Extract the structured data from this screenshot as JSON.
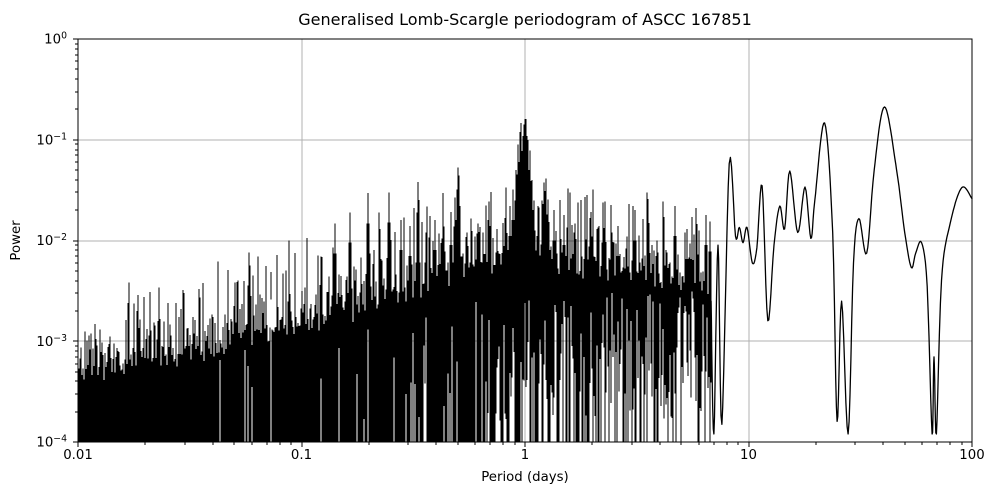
{
  "figure": {
    "background": "#ffffff"
  },
  "chart_data": {
    "type": "line",
    "title": "Generalised Lomb-Scargle periodogram of ASCC 167851",
    "xlabel": "Period (days)",
    "ylabel": "Power",
    "xscale": "log",
    "yscale": "log",
    "xlim": [
      0.01,
      100
    ],
    "ylim": [
      0.0001,
      1
    ],
    "x_ticks": [
      0.01,
      0.1,
      1,
      10,
      100
    ],
    "x_tick_labels": [
      "0.01",
      "0.1",
      "1",
      "10",
      "100"
    ],
    "y_tick_exponents": [
      0,
      -1,
      -2,
      -3,
      -4
    ],
    "grid": "major-both-axes",
    "legend": false,
    "line_color": "#000000",
    "grid_color": "#b0b0b0",
    "series_description": "Single black periodogram trace: unresolved dense noise below ~7 days rendered as solid spiky mass rising from the 1e-4 floor, a strong alias peak cluster at 1 day (max ~0.15), and resolved smooth lobes at long periods with major peaks near 22 and 41 days.",
    "noise_region": {
      "period_range": [
        0.01,
        6.8
      ],
      "floor": 0.0001,
      "body_top": [
        [
          0.01,
          0.00038
        ],
        [
          0.025,
          0.0005
        ],
        [
          0.063,
          0.00089
        ],
        [
          0.1,
          0.0011
        ],
        [
          0.2,
          0.0019
        ],
        [
          0.32,
          0.0025
        ],
        [
          0.5,
          0.0035
        ],
        [
          0.8,
          0.005
        ],
        [
          1.0,
          0.0056
        ],
        [
          1.4,
          0.0045
        ],
        [
          2.0,
          0.004
        ],
        [
          3.2,
          0.0035
        ],
        [
          4.5,
          0.0032
        ],
        [
          6.8,
          0.0028
        ]
      ]
    },
    "cluster": {
      "center_period": 1.0,
      "peak_power": 0.16,
      "log_width": 0.045
    },
    "notable_peaks": [
      [
        0.141,
        0.0148
      ],
      [
        0.165,
        0.019
      ],
      [
        0.198,
        0.0295
      ],
      [
        0.225,
        0.013
      ],
      [
        0.246,
        0.03
      ],
      [
        0.28,
        0.016
      ],
      [
        0.305,
        0.014
      ],
      [
        0.333,
        0.038
      ],
      [
        0.36,
        0.012
      ],
      [
        0.395,
        0.016
      ],
      [
        0.43,
        0.021
      ],
      [
        0.465,
        0.018
      ],
      [
        0.497,
        0.032
      ],
      [
        0.502,
        0.053
      ],
      [
        0.508,
        0.044
      ],
      [
        0.55,
        0.012
      ],
      [
        0.6,
        0.011
      ],
      [
        0.65,
        0.012
      ],
      [
        0.7,
        0.014
      ],
      [
        0.75,
        0.013
      ],
      [
        0.8,
        0.015
      ],
      [
        0.86,
        0.022
      ],
      [
        0.88,
        0.032
      ],
      [
        0.91,
        0.05
      ],
      [
        0.935,
        0.09
      ],
      [
        0.945,
        0.12
      ],
      [
        0.958,
        0.147
      ],
      [
        0.97,
        0.06
      ],
      [
        1.005,
        0.13
      ],
      [
        1.015,
        0.16
      ],
      [
        1.03,
        0.1
      ],
      [
        1.05,
        0.078
      ],
      [
        1.07,
        0.04
      ],
      [
        1.1,
        0.025
      ],
      [
        1.14,
        0.022
      ],
      [
        1.2,
        0.018
      ],
      [
        1.27,
        0.015
      ],
      [
        1.35,
        0.02
      ],
      [
        1.5,
        0.018
      ],
      [
        1.65,
        0.012
      ],
      [
        1.85,
        0.013
      ],
      [
        2.0,
        0.011
      ],
      [
        2.2,
        0.0095
      ],
      [
        2.6,
        0.014
      ],
      [
        2.85,
        0.011
      ],
      [
        3.1,
        0.02
      ],
      [
        3.6,
        0.015
      ],
      [
        3.9,
        0.01
      ],
      [
        4.2,
        0.0085
      ],
      [
        4.7,
        0.022
      ],
      [
        5.3,
        0.013
      ],
      [
        5.9,
        0.0145
      ],
      [
        6.45,
        0.018
      ],
      [
        6.7,
        0.0155
      ]
    ],
    "resolved_curve": [
      [
        6.8,
        0.0025
      ],
      [
        7.0,
        0.00012
      ],
      [
        7.3,
        0.009
      ],
      [
        7.6,
        0.00015
      ],
      [
        8.2,
        0.058
      ],
      [
        8.75,
        0.011
      ],
      [
        9.1,
        0.0135
      ],
      [
        9.45,
        0.0095
      ],
      [
        9.85,
        0.0135
      ],
      [
        10.4,
        0.006
      ],
      [
        10.9,
        0.0085
      ],
      [
        11.5,
        0.035
      ],
      [
        12.2,
        0.0016
      ],
      [
        13.0,
        0.009
      ],
      [
        13.8,
        0.022
      ],
      [
        14.5,
        0.013
      ],
      [
        15.3,
        0.049
      ],
      [
        16.6,
        0.012
      ],
      [
        17.9,
        0.034
      ],
      [
        19.0,
        0.0105
      ],
      [
        19.8,
        0.025
      ],
      [
        21.9,
        0.147
      ],
      [
        23.8,
        0.012
      ],
      [
        24.9,
        0.00016
      ],
      [
        26.1,
        0.0025
      ],
      [
        27.9,
        0.00012
      ],
      [
        29.5,
        0.006
      ],
      [
        31.2,
        0.0165
      ],
      [
        33.8,
        0.0075
      ],
      [
        36.5,
        0.05
      ],
      [
        40.6,
        0.212
      ],
      [
        46.0,
        0.05
      ],
      [
        50.0,
        0.012
      ],
      [
        53.5,
        0.0054
      ],
      [
        56.0,
        0.0075
      ],
      [
        59.5,
        0.0095
      ],
      [
        63.0,
        0.0035
      ],
      [
        66.3,
        0.00012
      ],
      [
        67.6,
        0.0007
      ],
      [
        69.3,
        0.00012
      ],
      [
        73.0,
        0.004
      ],
      [
        80.0,
        0.015
      ],
      [
        90.0,
        0.0335
      ],
      [
        100.0,
        0.026
      ]
    ]
  }
}
